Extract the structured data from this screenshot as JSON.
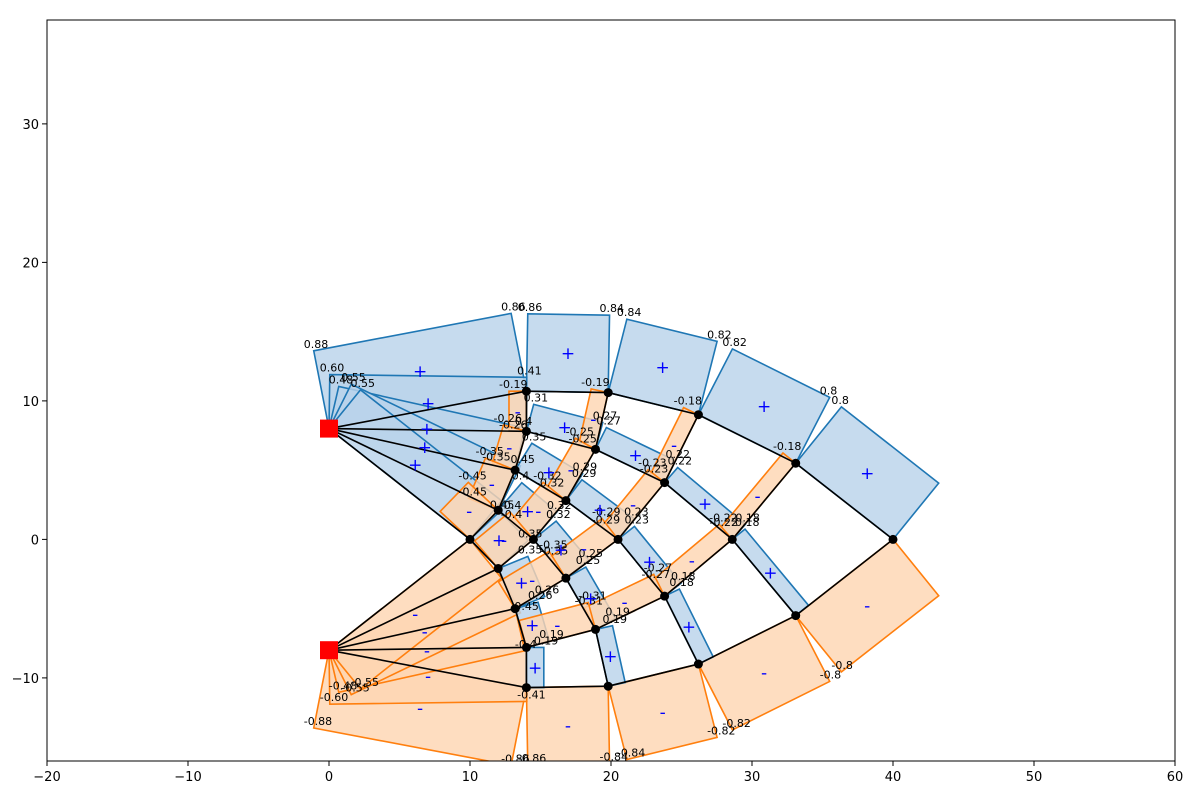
{
  "chart_data": {
    "type": "diagram-plot",
    "title": "",
    "xlabel": "",
    "ylabel": "",
    "xlim": [
      -20,
      60
    ],
    "ylim": [
      -16,
      37.5
    ],
    "xticks": [
      -20,
      -10,
      0,
      10,
      20,
      30,
      40,
      50,
      60
    ],
    "yticks": [
      -10,
      0,
      10,
      20,
      30
    ],
    "grid": false,
    "colors": {
      "positive_fill": "#b9d3ea",
      "positive_edge": "#1f77b4",
      "negative_fill": "#fed5b2",
      "negative_edge": "#ff7f0e",
      "member": "#000000",
      "support": "#ff0000",
      "sign": "#0000ff"
    },
    "supports": [
      [
        0,
        8
      ],
      [
        0,
        -8
      ]
    ],
    "nodes": [
      [
        10,
        0
      ],
      [
        12,
        2.1
      ],
      [
        12,
        -2.1
      ],
      [
        13.2,
        5
      ],
      [
        13.2,
        -5
      ],
      [
        14,
        7.8
      ],
      [
        14,
        -7.8
      ],
      [
        14,
        10.7
      ],
      [
        14,
        -10.7
      ],
      [
        14.5,
        0
      ],
      [
        16.8,
        2.8
      ],
      [
        16.8,
        -2.8
      ],
      [
        18.9,
        6.5
      ],
      [
        18.9,
        -6.5
      ],
      [
        19.8,
        10.6
      ],
      [
        19.8,
        -10.6
      ],
      [
        20.5,
        0
      ],
      [
        23.8,
        4.1
      ],
      [
        23.8,
        -4.1
      ],
      [
        26.2,
        9
      ],
      [
        26.2,
        -9
      ],
      [
        28.6,
        0
      ],
      [
        33.1,
        5.5
      ],
      [
        33.1,
        -5.5
      ],
      [
        40,
        0
      ]
    ],
    "members": [
      {
        "from": [
          0,
          8
        ],
        "to": [
          14,
          10.7
        ],
        "force": 0.88,
        "tag_a": "0.88",
        "tag_b": "0.86",
        "sign": "+"
      },
      {
        "from": [
          0,
          8
        ],
        "to": [
          14,
          7.8
        ],
        "force": 0.6,
        "tag_a": "0.60",
        "tag_b": "0.41",
        "sign": "+"
      },
      {
        "from": [
          0,
          8
        ],
        "to": [
          13.2,
          5
        ],
        "force": 0.48,
        "tag_a": "0.48",
        "tag_b": "0.4",
        "sign": "+"
      },
      {
        "from": [
          0,
          8
        ],
        "to": [
          12,
          2.1
        ],
        "force": 0.55,
        "tag_a": "0.55",
        "tag_b": "0.45",
        "sign": "+"
      },
      {
        "from": [
          0,
          8
        ],
        "to": [
          10,
          0
        ],
        "force": 0.55,
        "tag_a": "0.55",
        "tag_b": "",
        "sign": "+"
      },
      {
        "from": [
          0,
          -8
        ],
        "to": [
          14,
          -10.7
        ],
        "force": -0.88,
        "tag_a": "-0.88",
        "tag_b": "-0.86",
        "sign": "-"
      },
      {
        "from": [
          0,
          -8
        ],
        "to": [
          14,
          -7.8
        ],
        "force": -0.6,
        "tag_a": "-0.60",
        "tag_b": "-0.41",
        "sign": "-"
      },
      {
        "from": [
          0,
          -8
        ],
        "to": [
          13.2,
          -5
        ],
        "force": -0.48,
        "tag_a": "-0.48",
        "tag_b": "-0.4",
        "sign": "-"
      },
      {
        "from": [
          0,
          -8
        ],
        "to": [
          12,
          -2.1
        ],
        "force": -0.55,
        "tag_a": "-0.55",
        "tag_b": "-0.45",
        "sign": "-"
      },
      {
        "from": [
          0,
          -8
        ],
        "to": [
          10,
          0
        ],
        "force": -0.55,
        "tag_a": "-0.55",
        "tag_b": "",
        "sign": "-"
      },
      {
        "from": [
          14,
          10.7
        ],
        "to": [
          19.8,
          10.6
        ],
        "force": 0.86,
        "tag_a": "0.86",
        "tag_b": "0.84",
        "sign": "+"
      },
      {
        "from": [
          19.8,
          10.6
        ],
        "to": [
          26.2,
          9
        ],
        "force": 0.84,
        "tag_a": "0.84",
        "tag_b": "0.82",
        "sign": "+"
      },
      {
        "from": [
          26.2,
          9
        ],
        "to": [
          33.1,
          5.5
        ],
        "force": 0.82,
        "tag_a": "0.82",
        "tag_b": "0.8",
        "sign": "+"
      },
      {
        "from": [
          33.1,
          5.5
        ],
        "to": [
          40,
          0
        ],
        "force": 0.8,
        "tag_a": "0.8",
        "tag_b": "",
        "sign": "+"
      },
      {
        "from": [
          14,
          -10.7
        ],
        "to": [
          19.8,
          -10.6
        ],
        "force": -0.86,
        "tag_a": "-0.86",
        "tag_b": "-0.84",
        "sign": "-"
      },
      {
        "from": [
          19.8,
          -10.6
        ],
        "to": [
          26.2,
          -9
        ],
        "force": -0.84,
        "tag_a": "-0.84",
        "tag_b": "-0.82",
        "sign": "-"
      },
      {
        "from": [
          26.2,
          -9
        ],
        "to": [
          33.1,
          -5.5
        ],
        "force": -0.82,
        "tag_a": "-0.82",
        "tag_b": "-0.8",
        "sign": "-"
      },
      {
        "from": [
          33.1,
          -5.5
        ],
        "to": [
          40,
          0
        ],
        "force": -0.8,
        "tag_a": "-0.8",
        "tag_b": "",
        "sign": "-"
      },
      {
        "from": [
          14,
          7.8
        ],
        "to": [
          18.9,
          6.5
        ],
        "force": 0.31,
        "tag_a": "0.31",
        "tag_b": "0.27",
        "sign": "+"
      },
      {
        "from": [
          18.9,
          6.5
        ],
        "to": [
          23.8,
          4.1
        ],
        "force": 0.27,
        "tag_a": "0.27",
        "tag_b": "0.22",
        "sign": "+"
      },
      {
        "from": [
          23.8,
          4.1
        ],
        "to": [
          28.6,
          0
        ],
        "force": 0.22,
        "tag_a": "0.22",
        "tag_b": "0.18",
        "sign": "+"
      },
      {
        "from": [
          28.6,
          0
        ],
        "to": [
          33.1,
          -5.5
        ],
        "force": 0.18,
        "tag_a": "0.18",
        "tag_b": "",
        "sign": "+"
      },
      {
        "from": [
          13.2,
          5
        ],
        "to": [
          16.8,
          2.8
        ],
        "force": 0.35,
        "tag_a": "0.35",
        "tag_b": "0.29",
        "sign": "+"
      },
      {
        "from": [
          16.8,
          2.8
        ],
        "to": [
          20.5,
          0
        ],
        "force": 0.29,
        "tag_a": "0.29",
        "tag_b": "0.23",
        "sign": "+"
      },
      {
        "from": [
          20.5,
          0
        ],
        "to": [
          23.8,
          -4.1
        ],
        "force": 0.23,
        "tag_a": "0.23",
        "tag_b": "0.18",
        "sign": "+"
      },
      {
        "from": [
          23.8,
          -4.1
        ],
        "to": [
          26.2,
          -9
        ],
        "force": 0.18,
        "tag_a": "0.18",
        "tag_b": "",
        "sign": "+"
      },
      {
        "from": [
          12,
          2.1
        ],
        "to": [
          14.5,
          0
        ],
        "force": 0.4,
        "tag_a": "0.4",
        "tag_b": "0.32",
        "sign": "+"
      },
      {
        "from": [
          14.5,
          0
        ],
        "to": [
          16.8,
          -2.8
        ],
        "force": 0.32,
        "tag_a": "0.32",
        "tag_b": "0.25",
        "sign": "+"
      },
      {
        "from": [
          16.8,
          -2.8
        ],
        "to": [
          18.9,
          -6.5
        ],
        "force": 0.25,
        "tag_a": "0.25",
        "tag_b": "0.19",
        "sign": "+"
      },
      {
        "from": [
          18.9,
          -6.5
        ],
        "to": [
          19.8,
          -10.6
        ],
        "force": 0.19,
        "tag_a": "0.19",
        "tag_b": "",
        "sign": "+"
      },
      {
        "from": [
          10,
          0
        ],
        "to": [
          12,
          -2.1
        ],
        "force": 0.45,
        "tag_a": "0.45",
        "tag_b": "0.35",
        "sign": "+"
      },
      {
        "from": [
          12,
          -2.1
        ],
        "to": [
          13.2,
          -5
        ],
        "force": 0.35,
        "tag_a": "0.35",
        "tag_b": "0.26",
        "sign": "+"
      },
      {
        "from": [
          13.2,
          -5
        ],
        "to": [
          14,
          -7.8
        ],
        "force": 0.26,
        "tag_a": "0.26",
        "tag_b": "0.19",
        "sign": "+"
      },
      {
        "from": [
          14,
          -7.8
        ],
        "to": [
          14,
          -10.7
        ],
        "force": 0.19,
        "tag_a": "0.19",
        "tag_b": "",
        "sign": "+"
      },
      {
        "from": [
          14,
          10.7
        ],
        "to": [
          14,
          7.8
        ],
        "force": -0.19,
        "tag_a": "-0.19",
        "tag_b": "-0.26",
        "sign": "-"
      },
      {
        "from": [
          14,
          7.8
        ],
        "to": [
          13.2,
          5
        ],
        "force": -0.26,
        "tag_a": "-0.26",
        "tag_b": "-0.35",
        "sign": "-"
      },
      {
        "from": [
          13.2,
          5
        ],
        "to": [
          12,
          2.1
        ],
        "force": -0.35,
        "tag_a": "-0.35",
        "tag_b": "-0.45",
        "sign": "-"
      },
      {
        "from": [
          12,
          2.1
        ],
        "to": [
          10,
          0
        ],
        "force": -0.45,
        "tag_a": "-0.45",
        "tag_b": "",
        "sign": "-"
      },
      {
        "from": [
          19.8,
          10.6
        ],
        "to": [
          18.9,
          6.5
        ],
        "force": -0.19,
        "tag_a": "-0.19",
        "tag_b": "-0.25",
        "sign": "-"
      },
      {
        "from": [
          18.9,
          6.5
        ],
        "to": [
          16.8,
          2.8
        ],
        "force": -0.25,
        "tag_a": "-0.25",
        "tag_b": "-0.32",
        "sign": "-"
      },
      {
        "from": [
          16.8,
          2.8
        ],
        "to": [
          14.5,
          0
        ],
        "force": -0.32,
        "tag_a": "-0.32",
        "tag_b": "-0.4",
        "sign": "-"
      },
      {
        "from": [
          14.5,
          0
        ],
        "to": [
          12,
          -2.1
        ],
        "force": -0.4,
        "tag_a": "-0.4",
        "tag_b": "",
        "sign": "-"
      },
      {
        "from": [
          26.2,
          9
        ],
        "to": [
          23.8,
          4.1
        ],
        "force": -0.18,
        "tag_a": "-0.18",
        "tag_b": "-0.23",
        "sign": "-"
      },
      {
        "from": [
          23.8,
          4.1
        ],
        "to": [
          20.5,
          0
        ],
        "force": -0.23,
        "tag_a": "-0.23",
        "tag_b": "-0.29",
        "sign": "-"
      },
      {
        "from": [
          20.5,
          0
        ],
        "to": [
          16.8,
          -2.8
        ],
        "force": -0.29,
        "tag_a": "-0.29",
        "tag_b": "-0.35",
        "sign": "-"
      },
      {
        "from": [
          16.8,
          -2.8
        ],
        "to": [
          13.2,
          -5
        ],
        "force": -0.35,
        "tag_a": "-0.35",
        "tag_b": "",
        "sign": "-"
      },
      {
        "from": [
          33.1,
          5.5
        ],
        "to": [
          28.6,
          0
        ],
        "force": -0.18,
        "tag_a": "-0.18",
        "tag_b": "-0.22",
        "sign": "-"
      },
      {
        "from": [
          28.6,
          0
        ],
        "to": [
          23.8,
          -4.1
        ],
        "force": -0.22,
        "tag_a": "-0.22",
        "tag_b": "-0.27",
        "sign": "-"
      },
      {
        "from": [
          23.8,
          -4.1
        ],
        "to": [
          18.9,
          -6.5
        ],
        "force": -0.27,
        "tag_a": "-0.27",
        "tag_b": "-0.31",
        "sign": "-"
      },
      {
        "from": [
          18.9,
          -6.5
        ],
        "to": [
          14,
          -7.8
        ],
        "force": -0.31,
        "tag_a": "-0.31",
        "tag_b": "",
        "sign": "-"
      }
    ]
  }
}
